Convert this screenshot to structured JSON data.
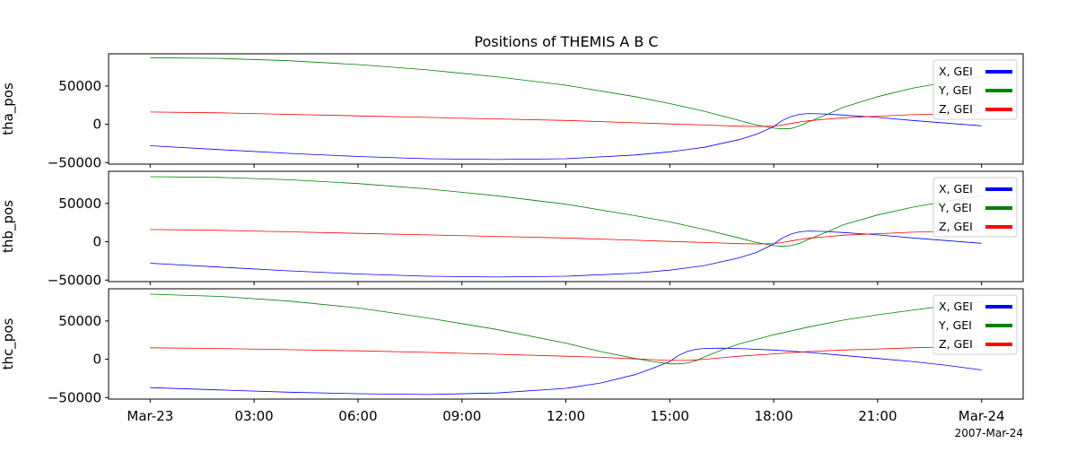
{
  "title": "Positions of THEMIS A B C",
  "date_label": "2007-Mar-24",
  "x_ticks": [
    {
      "t": 0,
      "label": "Mar-23"
    },
    {
      "t": 3,
      "label": "03:00"
    },
    {
      "t": 6,
      "label": "06:00"
    },
    {
      "t": 9,
      "label": "09:00"
    },
    {
      "t": 12,
      "label": "12:00"
    },
    {
      "t": 15,
      "label": "15:00"
    },
    {
      "t": 18,
      "label": "18:00"
    },
    {
      "t": 21,
      "label": "21:00"
    },
    {
      "t": 24,
      "label": "Mar-24"
    }
  ],
  "colors": {
    "x": "#0000ff",
    "y": "#008000",
    "z": "#ff0000"
  },
  "chart_data": [
    {
      "type": "line",
      "ylabel": "tha_pos",
      "xlim_hours": [
        -1.2,
        25.2
      ],
      "ylim": [
        -52000,
        92000
      ],
      "y_ticks": [
        -50000,
        0,
        50000
      ],
      "y_tick_labels": [
        "−50000",
        "0",
        "50000"
      ],
      "legend": "top-right",
      "x_hours": [
        0,
        2,
        4,
        6,
        8,
        10,
        12,
        14,
        15,
        16,
        17,
        17.5,
        18,
        18.25,
        18.5,
        18.75,
        19,
        19.5,
        20,
        21,
        22,
        23,
        24
      ],
      "series": [
        {
          "name": "X, GEI",
          "color": "#0000ff",
          "values": [
            -28000,
            -33000,
            -38000,
            -42000,
            -45000,
            -46000,
            -45000,
            -40000,
            -36000,
            -30000,
            -20000,
            -13000,
            -3000,
            5000,
            10000,
            13000,
            14000,
            13500,
            12000,
            9000,
            5000,
            1500,
            -2000
          ]
        },
        {
          "name": "Y, GEI",
          "color": "#008000",
          "values": [
            87000,
            86000,
            83000,
            78000,
            71000,
            62000,
            51000,
            36000,
            27000,
            17000,
            5000,
            -1000,
            -5000,
            -6000,
            -5500,
            -2000,
            3000,
            12000,
            22000,
            36000,
            47000,
            55000,
            62000
          ]
        },
        {
          "name": "Z, GEI",
          "color": "#ff0000",
          "values": [
            16000,
            15000,
            13000,
            11000,
            9000,
            7000,
            5000,
            2000,
            500,
            -1000,
            -2500,
            -2800,
            -2500,
            -1000,
            1000,
            3000,
            4500,
            6500,
            8500,
            10500,
            12500,
            13500,
            15000
          ]
        }
      ]
    },
    {
      "type": "line",
      "ylabel": "thb_pos",
      "xlim_hours": [
        -1.2,
        25.2
      ],
      "ylim": [
        -52000,
        92000
      ],
      "y_ticks": [
        -50000,
        0,
        50000
      ],
      "y_tick_labels": [
        "−50000",
        "0",
        "50000"
      ],
      "legend": "top-right",
      "x_hours": [
        0,
        2,
        4,
        6,
        8,
        10,
        12,
        14,
        15,
        16,
        17,
        17.5,
        18,
        18.25,
        18.5,
        18.75,
        19,
        19.5,
        20,
        21,
        22,
        23,
        24
      ],
      "series": [
        {
          "name": "X, GEI",
          "color": "#0000ff",
          "values": [
            -28000,
            -33000,
            -38000,
            -42000,
            -45000,
            -46000,
            -45000,
            -41000,
            -37000,
            -31000,
            -21000,
            -14000,
            -3000,
            5000,
            10000,
            13000,
            14000,
            13500,
            12000,
            9000,
            5000,
            1500,
            -2000
          ]
        },
        {
          "name": "Y, GEI",
          "color": "#008000",
          "values": [
            85000,
            84000,
            81000,
            76000,
            69000,
            60000,
            49000,
            34000,
            26000,
            16000,
            5000,
            -1000,
            -5000,
            -6000,
            -5000,
            -2000,
            3000,
            12000,
            22000,
            35000,
            45000,
            53000,
            60000
          ]
        },
        {
          "name": "Z, GEI",
          "color": "#ff0000",
          "values": [
            16000,
            15000,
            13000,
            11000,
            9000,
            7000,
            5000,
            2000,
            500,
            -1000,
            -2500,
            -2800,
            -2500,
            -1000,
            1000,
            3000,
            4500,
            6500,
            8500,
            10500,
            12500,
            13500,
            15000
          ]
        }
      ]
    },
    {
      "type": "line",
      "ylabel": "thc_pos",
      "xlim_hours": [
        -1.2,
        25.2
      ],
      "ylim": [
        -52000,
        92000
      ],
      "y_ticks": [
        -50000,
        0,
        50000
      ],
      "y_tick_labels": [
        "−50000",
        "0",
        "50000"
      ],
      "legend": "top-right",
      "x_hours": [
        0,
        2,
        4,
        6,
        8,
        10,
        12,
        13,
        14,
        14.5,
        15,
        15.25,
        15.5,
        15.75,
        16,
        16.5,
        17,
        18,
        19,
        20,
        21,
        22,
        23,
        24
      ],
      "series": [
        {
          "name": "X, GEI",
          "color": "#0000ff",
          "values": [
            -37000,
            -40000,
            -43000,
            -45000,
            -46000,
            -44000,
            -38000,
            -31000,
            -20000,
            -12000,
            -3000,
            5000,
            10000,
            13000,
            14000,
            14500,
            14000,
            12000,
            9000,
            5000,
            1000,
            -3000,
            -8000,
            -14000
          ]
        },
        {
          "name": "Y, GEI",
          "color": "#008000",
          "values": [
            85000,
            82000,
            76000,
            67000,
            54000,
            39000,
            21000,
            10000,
            1000,
            -3000,
            -6000,
            -6000,
            -5000,
            -2000,
            3000,
            12000,
            20000,
            32000,
            42000,
            51000,
            58000,
            64000,
            70000,
            75000
          ]
        },
        {
          "name": "Z, GEI",
          "color": "#ff0000",
          "values": [
            15000,
            14000,
            12500,
            11000,
            9000,
            6500,
            4000,
            2500,
            500,
            -500,
            -1500,
            -1600,
            -1500,
            -800,
            0,
            2000,
            4000,
            7000,
            10000,
            12000,
            13500,
            15000,
            16000,
            17000
          ]
        }
      ]
    }
  ]
}
